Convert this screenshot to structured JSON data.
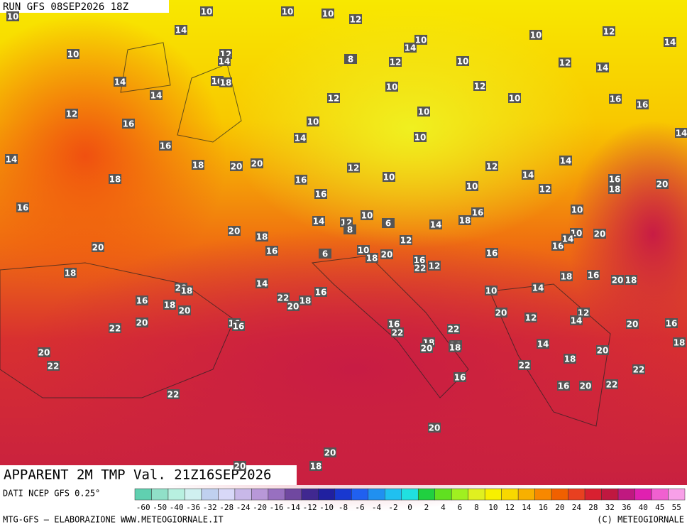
{
  "header": {
    "run": "RUN GFS 08SEP2026 18Z"
  },
  "map": {
    "title": "APPARENT 2M TMP Val. 21Z16SEP2026",
    "labels": [
      10,
      10,
      10,
      10,
      12,
      14,
      14,
      10,
      10,
      12,
      14,
      10,
      12,
      14,
      8,
      12,
      10,
      12,
      14,
      14,
      10,
      18,
      14,
      10,
      12,
      12,
      10,
      16,
      16,
      12,
      16,
      10,
      10,
      16,
      14,
      10,
      14,
      14,
      18,
      20,
      20,
      18,
      12,
      10,
      12,
      14,
      14,
      16,
      18,
      20,
      12,
      16,
      16,
      10,
      16,
      16,
      18,
      10,
      14,
      12,
      10,
      8,
      6,
      14,
      20,
      18,
      12,
      10,
      20,
      16,
      14,
      20,
      16,
      6,
      10,
      18,
      20,
      16,
      22,
      12,
      16,
      18,
      14,
      18,
      16,
      20,
      18,
      20,
      18,
      16,
      22,
      18,
      20,
      16,
      18,
      20,
      10,
      14,
      20,
      12,
      12,
      14,
      16,
      16,
      22,
      20,
      16,
      22,
      22,
      20,
      16,
      18,
      18,
      20,
      20,
      18,
      20,
      22,
      14,
      20,
      18,
      22,
      22,
      16,
      22,
      16,
      20,
      22,
      20,
      20,
      18,
      20
    ]
  },
  "legend": {
    "source": "DATI NCEP GFS 0.25°",
    "ticks": [
      -60,
      -50,
      -40,
      -36,
      -32,
      -28,
      -24,
      -20,
      -16,
      -14,
      -12,
      -10,
      -8,
      -6,
      -4,
      -2,
      0,
      2,
      4,
      6,
      8,
      10,
      12,
      14,
      16,
      20,
      24,
      28,
      32,
      36,
      40,
      45,
      55
    ],
    "colors": [
      "#60d0b0",
      "#90e0c8",
      "#b8f0e0",
      "#d0f0f0",
      "#c0d0f0",
      "#d8d8f8",
      "#c8b8e8",
      "#b898d8",
      "#9870c0",
      "#7048a0",
      "#402890",
      "#2020a0",
      "#1838d0",
      "#2060f0",
      "#2090f0",
      "#20c0f0",
      "#20e0e0",
      "#20d040",
      "#60e020",
      "#a0f020",
      "#e0f020",
      "#f8f000",
      "#f8d800",
      "#f8b000",
      "#f88800",
      "#f06000",
      "#e84020",
      "#d82030",
      "#c01840",
      "#c01880",
      "#e020b0",
      "#f060d0",
      "#f8a0e8"
    ]
  },
  "footer": {
    "left": "MTG-GFS — ELABORAZIONE WWW.METEOGIORNALE.IT",
    "right": "(C) METEOGIORNALE"
  }
}
